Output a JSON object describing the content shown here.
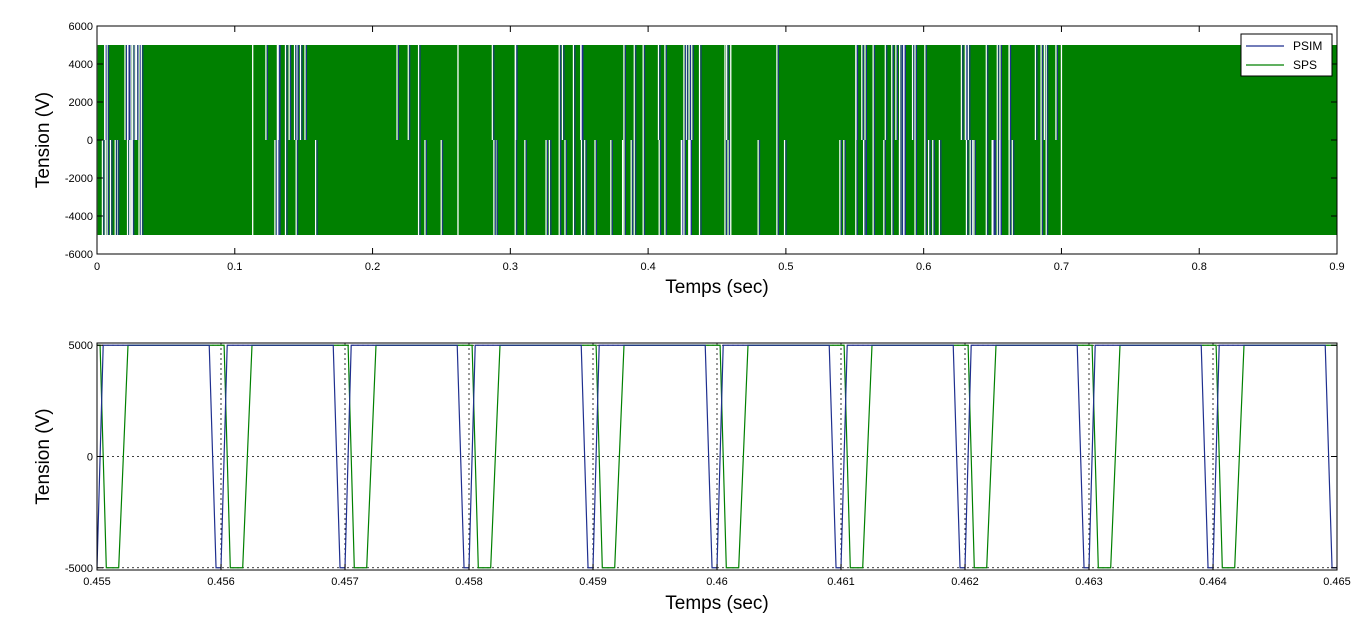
{
  "colors": {
    "psim": "#1f2f8f",
    "sps": "#008000"
  },
  "chart_data": [
    {
      "type": "line",
      "xlabel": "Temps (sec)",
      "ylabel": "Tension (V)",
      "xlim": [
        0,
        0.9
      ],
      "ylim": [
        -6000,
        6000
      ],
      "xticks": [
        "0",
        "0.1",
        "0.2",
        "0.3",
        "0.4",
        "0.5",
        "0.6",
        "0.7",
        "0.8",
        "0.9"
      ],
      "yticks": [
        "6000",
        "4000",
        "2000",
        "0",
        "-2000",
        "-4000",
        "-6000"
      ],
      "grid": false,
      "legend_position": "top-right",
      "series": [
        {
          "name": "PSIM",
          "description": "PWM switching between +5000 and -5000 V (three levels +5000 / 0 / -5000)",
          "levels": [
            -5000,
            0,
            5000
          ]
        },
        {
          "name": "SPS",
          "description": "PWM switching between +5000 and -5000 V",
          "levels": [
            -5000,
            5000
          ]
        }
      ]
    },
    {
      "type": "line",
      "xlabel": "Temps (sec)",
      "ylabel": "Tension (V)",
      "xlim": [
        0.455,
        0.465
      ],
      "ylim": [
        -5100,
        5100
      ],
      "xticks": [
        "0.455",
        "0.456",
        "0.457",
        "0.458",
        "0.459",
        "0.46",
        "0.461",
        "0.462",
        "0.463",
        "0.464",
        "0.465"
      ],
      "yticks": [
        "5000",
        "0",
        "-5000"
      ],
      "grid": true,
      "period": 0.001,
      "series": [
        {
          "name": "PSIM",
          "high": 5000,
          "low": -5000,
          "fall_start_offset": -9.5e-05,
          "fall_end_offset": -4e-05,
          "rise_start_offset": 0.0,
          "rise_end_offset": 5e-05
        },
        {
          "name": "SPS",
          "high": 5000,
          "low": -5000,
          "fall_start_offset": 2.5e-05,
          "fall_end_offset": 7.5e-05,
          "rise_start_offset": 0.000175,
          "rise_end_offset": 0.00025
        }
      ]
    }
  ]
}
